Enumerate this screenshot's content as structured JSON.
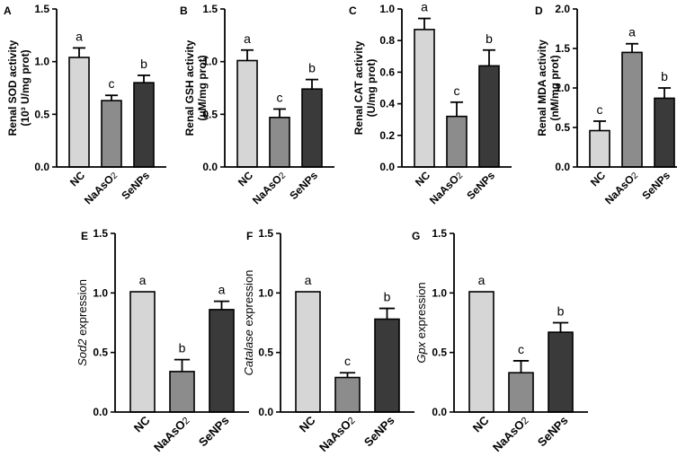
{
  "chart_data": [
    {
      "panel": "A",
      "type": "bar",
      "ylabel_lines": [
        "Renal SOD activity",
        "(10³ U/mg prot)"
      ],
      "ylim": [
        0,
        1.5
      ],
      "yticks": [
        "0.0",
        "0.5",
        "1.0",
        "1.5"
      ],
      "categories": [
        "NC",
        "NaAsO2",
        "SeNPs"
      ],
      "values": [
        1.04,
        0.63,
        0.8
      ],
      "errors": [
        0.09,
        0.05,
        0.07
      ],
      "letters": [
        "a",
        "c",
        "b"
      ],
      "colors": [
        "#d6d6d6",
        "#8c8c8c",
        "#3a3a3a"
      ]
    },
    {
      "panel": "B",
      "type": "bar",
      "ylabel_lines": [
        "Renal GSH activity",
        "(μM/mg prot)"
      ],
      "ylim": [
        0,
        1.5
      ],
      "yticks": [
        "0.0",
        "0.5",
        "1.0",
        "1.5"
      ],
      "categories": [
        "NC",
        "NaAsO2",
        "SeNPs"
      ],
      "values": [
        1.01,
        0.47,
        0.74
      ],
      "errors": [
        0.1,
        0.08,
        0.09
      ],
      "letters": [
        "a",
        "c",
        "b"
      ],
      "colors": [
        "#d6d6d6",
        "#8c8c8c",
        "#3a3a3a"
      ]
    },
    {
      "panel": "C",
      "type": "bar",
      "ylabel_lines": [
        "Renal CAT activity",
        "(U/mg prot)"
      ],
      "ylim": [
        0,
        1.0
      ],
      "yticks": [
        "0.0",
        "0.2",
        "0.4",
        "0.6",
        "0.8",
        "1.0"
      ],
      "categories": [
        "NC",
        "NaAsO2",
        "SeNPs"
      ],
      "values": [
        0.87,
        0.32,
        0.64
      ],
      "errors": [
        0.07,
        0.09,
        0.1
      ],
      "letters": [
        "a",
        "c",
        "b"
      ],
      "colors": [
        "#d6d6d6",
        "#8c8c8c",
        "#3a3a3a"
      ]
    },
    {
      "panel": "D",
      "type": "bar",
      "ylabel_lines": [
        "Renal MDA activity",
        "(nM/mg prot)"
      ],
      "ylim": [
        0,
        2.0
      ],
      "yticks": [
        "0.0",
        "0.5",
        "1.0",
        "1.5",
        "2.0"
      ],
      "categories": [
        "NC",
        "NaAsO2",
        "SeNPs"
      ],
      "values": [
        0.46,
        1.45,
        0.87
      ],
      "errors": [
        0.12,
        0.11,
        0.13
      ],
      "letters": [
        "c",
        "a",
        "b"
      ],
      "colors": [
        "#d6d6d6",
        "#8c8c8c",
        "#3a3a3a"
      ]
    },
    {
      "panel": "E",
      "type": "bar",
      "ylabel_italic": "Sod2",
      "ylabel_rest": " expression",
      "ylim": [
        0,
        1.5
      ],
      "yticks": [
        "0.0",
        "0.5",
        "1.0",
        "1.5"
      ],
      "categories": [
        "NC",
        "NaAsO2",
        "SeNPs"
      ],
      "values": [
        1.01,
        0.34,
        0.86
      ],
      "errors": [
        0.0,
        0.1,
        0.07
      ],
      "letters": [
        "a",
        "b",
        "a"
      ],
      "colors": [
        "#d6d6d6",
        "#8c8c8c",
        "#3a3a3a"
      ]
    },
    {
      "panel": "F",
      "type": "bar",
      "ylabel_italic": "Catalase",
      "ylabel_rest": " expression",
      "ylim": [
        0,
        1.5
      ],
      "yticks": [
        "0.0",
        "0.5",
        "1.0",
        "1.5"
      ],
      "categories": [
        "NC",
        "NaAsO2",
        "SeNPs"
      ],
      "values": [
        1.01,
        0.29,
        0.78
      ],
      "errors": [
        0.0,
        0.04,
        0.09
      ],
      "letters": [
        "a",
        "c",
        "b"
      ],
      "colors": [
        "#d6d6d6",
        "#8c8c8c",
        "#3a3a3a"
      ]
    },
    {
      "panel": "G",
      "type": "bar",
      "ylabel_italic": "Gpx",
      "ylabel_rest": " expression",
      "ylim": [
        0,
        1.5
      ],
      "yticks": [
        "0.0",
        "0.5",
        "1.0",
        "1.5"
      ],
      "categories": [
        "NC",
        "NaAsO2",
        "SeNPs"
      ],
      "values": [
        1.01,
        0.33,
        0.67
      ],
      "errors": [
        0.0,
        0.1,
        0.08
      ],
      "letters": [
        "a",
        "c",
        "b"
      ],
      "colors": [
        "#d6d6d6",
        "#8c8c8c",
        "#3a3a3a"
      ]
    }
  ]
}
